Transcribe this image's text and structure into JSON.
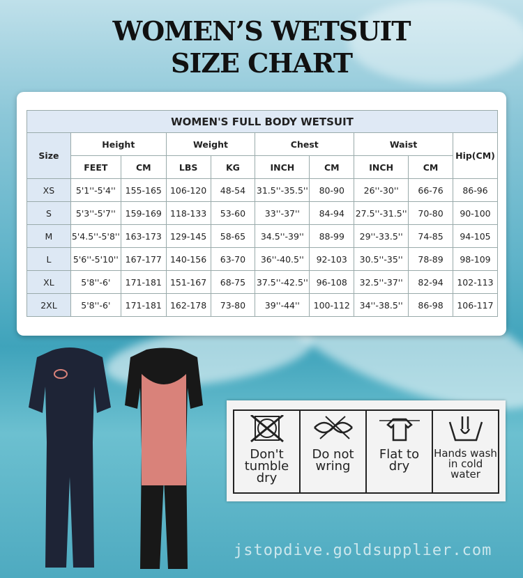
{
  "title": [
    "WOMEN’S WETSUIT",
    "SIZE CHART"
  ],
  "table": {
    "title": "WOMEN'S FULL BODY WETSUIT",
    "size_header": "Size",
    "groups": [
      "Height",
      "Weight",
      "Chest",
      "Waist"
    ],
    "hip_header": "Hip(CM)",
    "subheaders": [
      "FEET",
      "CM",
      "LBS",
      "KG",
      "INCH",
      "CM",
      "INCH",
      "CM"
    ],
    "rows": [
      [
        "XS",
        "5'1''-5'4''",
        "155-165",
        "106-120",
        "48-54",
        "31.5''-35.5''",
        "80-90",
        "26''-30''",
        "66-76",
        "86-96"
      ],
      [
        "S",
        "5'3''-5'7''",
        "159-169",
        "118-133",
        "53-60",
        "33''-37''",
        "84-94",
        "27.5''-31.5''",
        "70-80",
        "90-100"
      ],
      [
        "M",
        "5'4.5''-5'8''",
        "163-173",
        "129-145",
        "58-65",
        "34.5''-39''",
        "88-99",
        "29''-33.5''",
        "74-85",
        "94-105"
      ],
      [
        "L",
        "5'6''-5'10''",
        "167-177",
        "140-156",
        "63-70",
        "36''-40.5''",
        "92-103",
        "30.5''-35''",
        "78-89",
        "98-109"
      ],
      [
        "XL",
        "5'8''-6'",
        "171-181",
        "151-167",
        "68-75",
        "37.5''-42.5''",
        "96-108",
        "32.5''-37''",
        "82-94",
        "102-113"
      ],
      [
        "2XL",
        "5'8''-6'",
        "171-181",
        "162-178",
        "73-80",
        "39''-44''",
        "100-112",
        "34''-38.5''",
        "86-98",
        "106-117"
      ]
    ]
  },
  "care": [
    {
      "icon": "no-tumble-dry-icon",
      "lines": [
        "Don't",
        "tumble",
        "dry"
      ]
    },
    {
      "icon": "no-wring-icon",
      "lines": [
        "Do not",
        "wring"
      ]
    },
    {
      "icon": "flat-dry-icon",
      "lines": [
        "Flat to",
        "dry"
      ]
    },
    {
      "icon": "hand-wash-icon",
      "lines": [
        "Hands wash",
        "in cold",
        "water"
      ]
    }
  ],
  "watermark": "jstopdive.goldsupplier.com",
  "colors": {
    "header_bg": "#dfe9f5",
    "suit_dark": "#1e2436",
    "suit_pink": "#d9827a"
  }
}
